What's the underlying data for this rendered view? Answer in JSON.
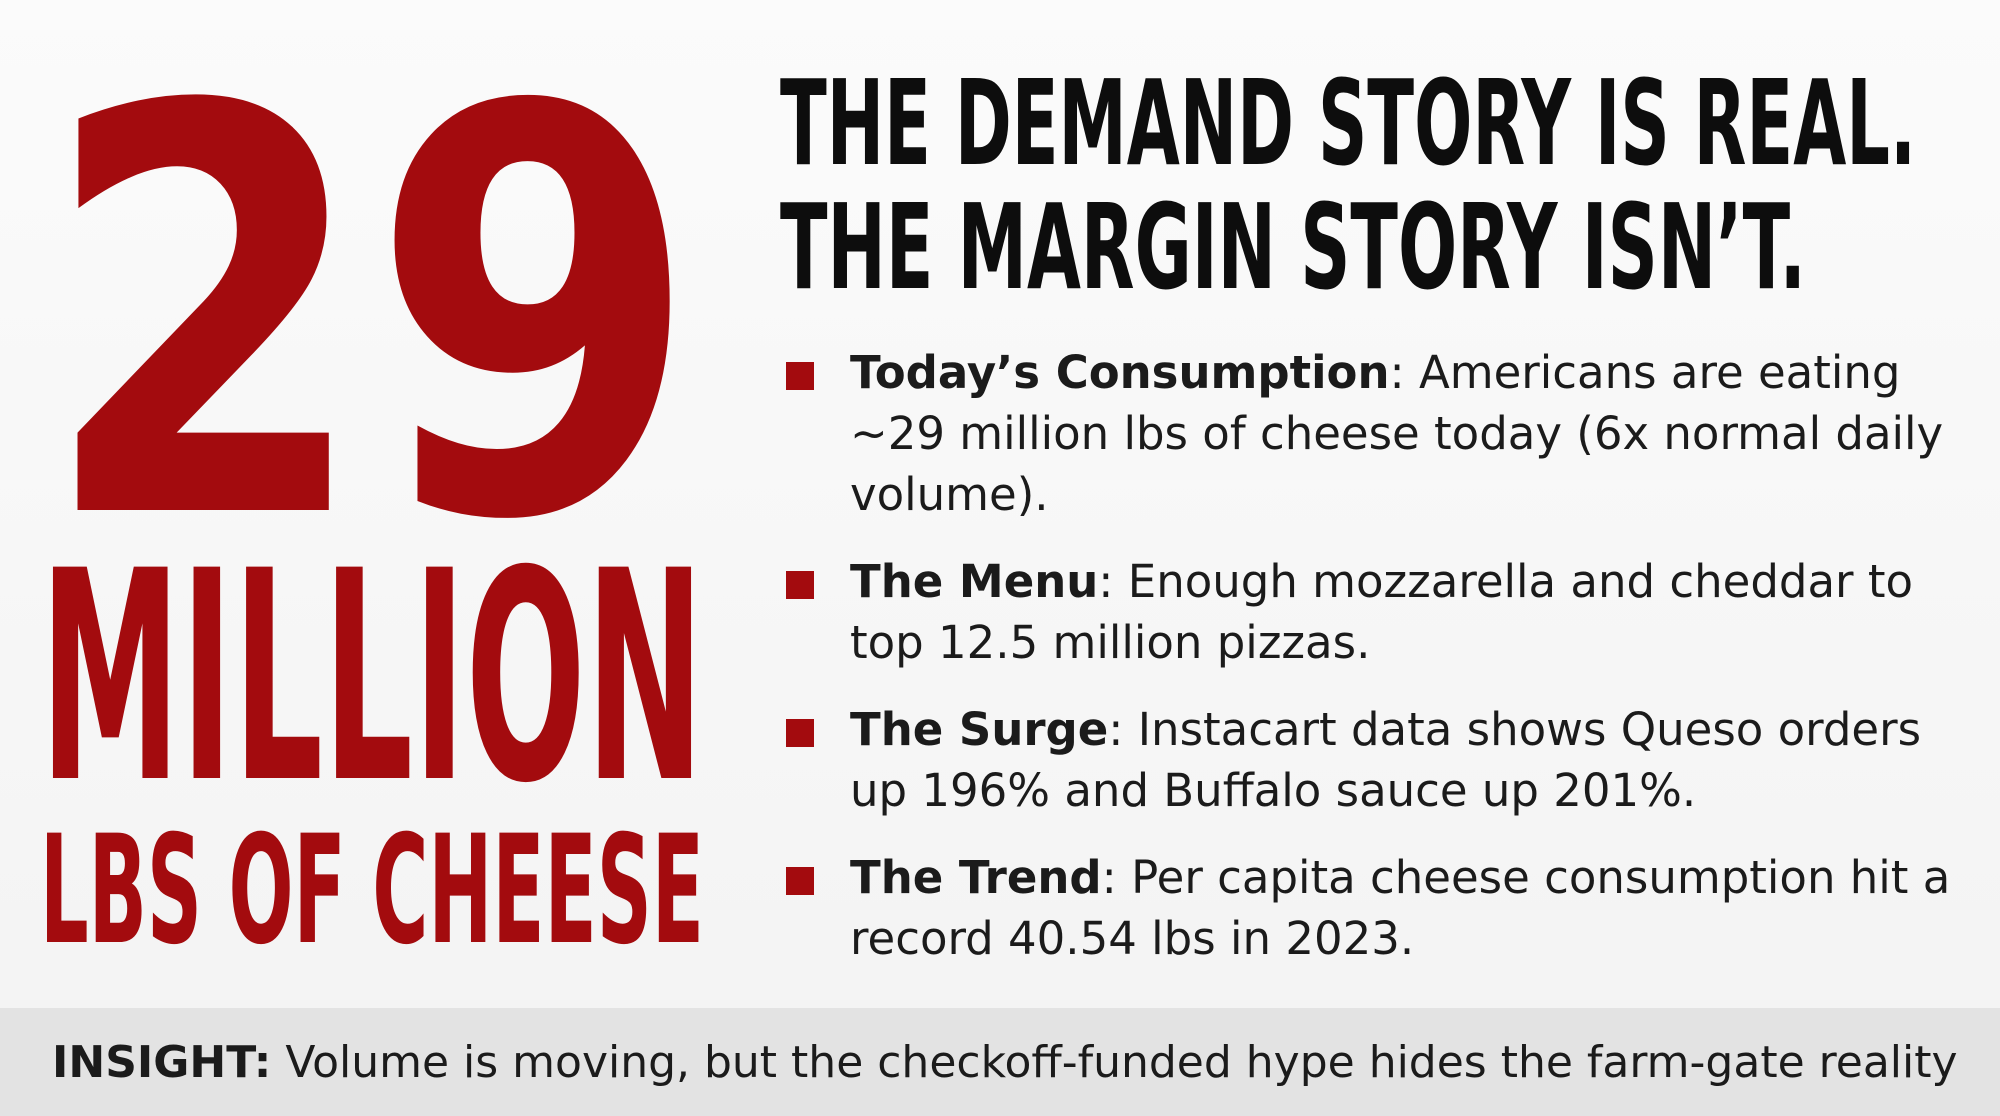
{
  "hero": {
    "number": "29",
    "unit": "MILLION",
    "subtitle": "LBS OF CHEESE"
  },
  "headline": {
    "line1": "THE DEMAND STORY IS REAL.",
    "line2": "THE MARGIN STORY ISN’T."
  },
  "bullets": [
    {
      "term": "Today’s Consumption",
      "sep": ":",
      "text": " Americans are eating ~29 million lbs of cheese today (6x normal daily volume)."
    },
    {
      "term": "The Menu",
      "sep": ":",
      "text": " Enough mozzarella and cheddar to top 12.5 million pizzas."
    },
    {
      "term": "The Surge",
      "sep": ":",
      "text": " Instacart data shows Queso orders up 196% and Buffalo sauce up 201%."
    },
    {
      "term": "The Trend",
      "sep": ":",
      "text": " Per capita cheese consumption hit a record 40.54 lbs in 2023."
    }
  ],
  "insight": {
    "label": "INSIGHT:",
    "text": " Volume is moving, but the checkoff-funded hype hides the farm-gate reality"
  },
  "colors": {
    "accent": "#a30b0e",
    "text": "#0d0d0d",
    "band": "#e3e3e3"
  }
}
